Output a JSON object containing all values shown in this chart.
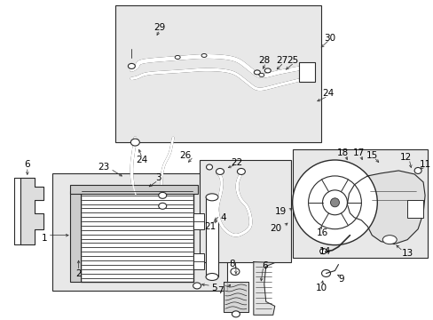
{
  "bg_color": "#ffffff",
  "line_color": "#2a2a2a",
  "box_bg": "#e8e8e8",
  "fig_width": 4.89,
  "fig_height": 3.6,
  "dpi": 100
}
